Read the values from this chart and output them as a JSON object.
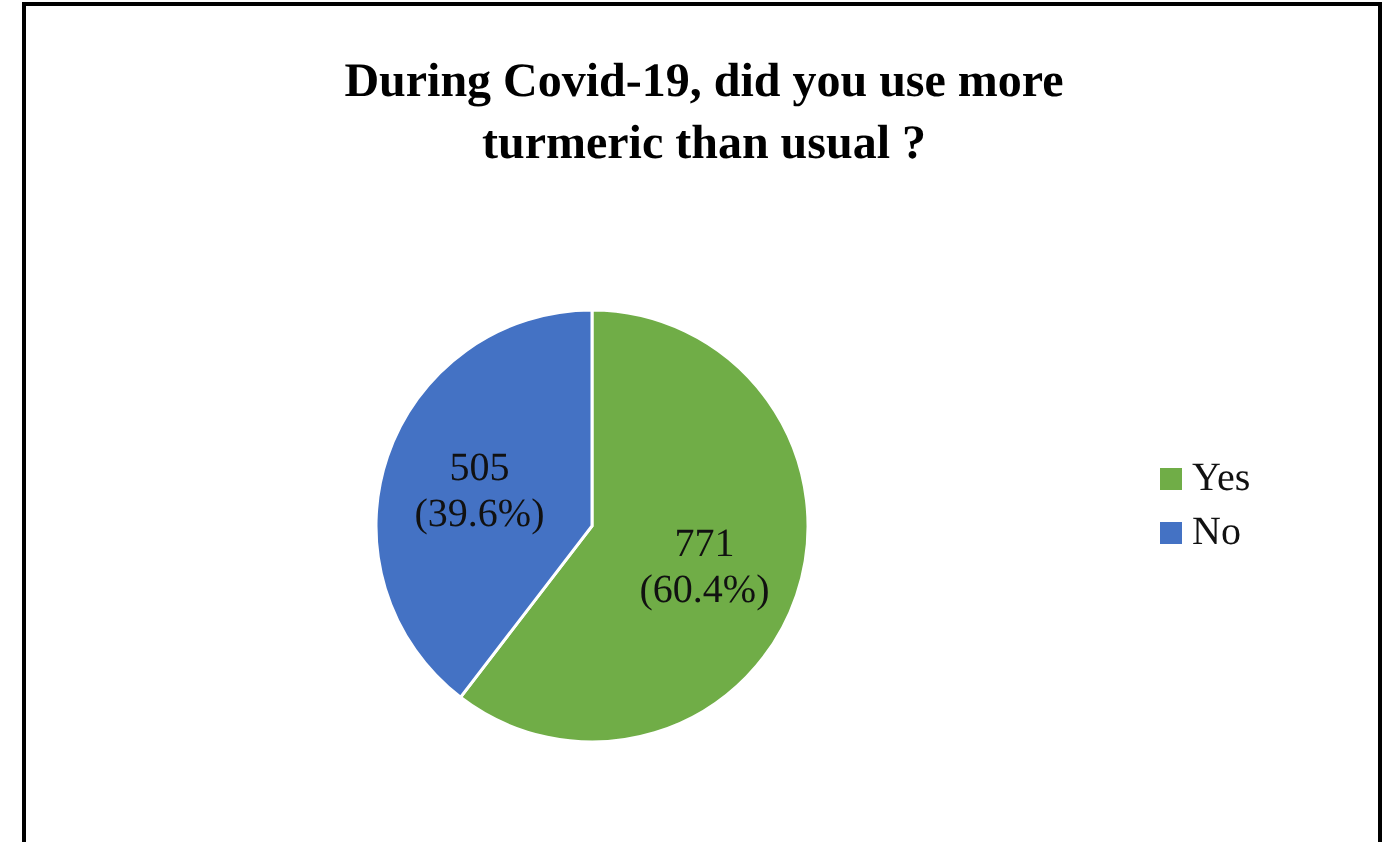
{
  "chart_data": {
    "type": "pie",
    "title": "During Covid-19, did you use more turmeric than usual ?",
    "categories": [
      "Yes",
      "No"
    ],
    "values": [
      771,
      505
    ],
    "colors": [
      "#70ad47",
      "#4472c4"
    ],
    "value_labels": [
      "771\n(60.4%)",
      "505\n(39.6%)"
    ],
    "legend": "right"
  }
}
